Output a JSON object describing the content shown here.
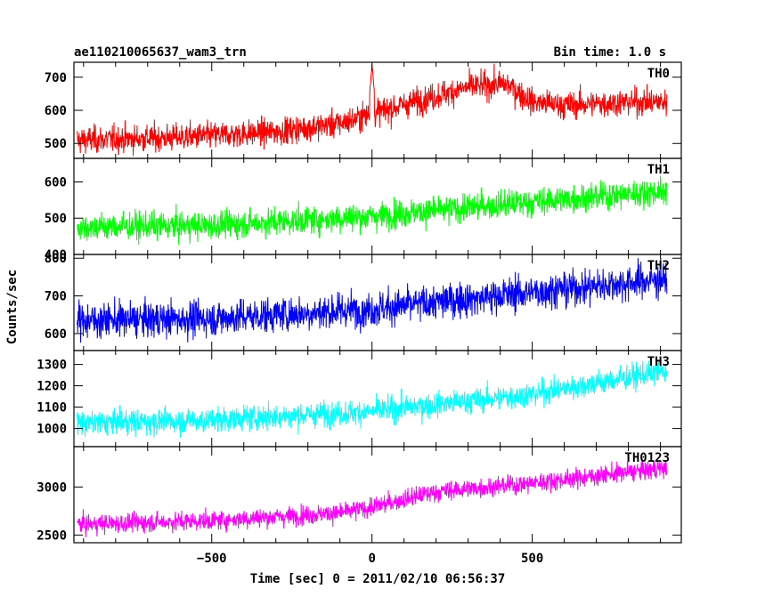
{
  "chart_data": {
    "type": "line",
    "title_left": "ae110210065637_wam3_trn",
    "title_right": "Bin time: 1.0 s",
    "xlabel": "Time [sec] 0 = 2011/02/10 06:56:37",
    "ylabel": "Counts/sec",
    "xlim": [
      -930,
      965
    ],
    "x_ticks": [
      -500,
      0,
      500
    ],
    "x_range": [
      -920,
      920
    ],
    "panels": [
      {
        "name": "TH0",
        "color": "#ff0000",
        "ylim": [
          455,
          745
        ],
        "y_ticks": [
          500,
          600,
          700
        ],
        "trend_x": [
          -920,
          -600,
          -300,
          -100,
          0,
          150,
          300,
          420,
          500,
          600,
          800,
          920
        ],
        "trend_y": [
          510,
          518,
          535,
          560,
          590,
          630,
          670,
          680,
          625,
          615,
          625,
          625
        ],
        "noise": 35,
        "spikes": [
          {
            "x": 0,
            "y": 740
          }
        ]
      },
      {
        "name": "TH1",
        "color": "#00ff00",
        "ylim": [
          400,
          665
        ],
        "y_ticks": [
          400,
          500,
          600
        ],
        "trend_x": [
          -920,
          -500,
          0,
          500,
          920
        ],
        "trend_y": [
          475,
          480,
          505,
          545,
          575
        ],
        "noise": 33,
        "spikes": []
      },
      {
        "name": "TH2",
        "color": "#0000ff",
        "ylim": [
          555,
          810
        ],
        "y_ticks": [
          600,
          700,
          800
        ],
        "trend_x": [
          -920,
          -500,
          0,
          500,
          920
        ],
        "trend_y": [
          635,
          640,
          665,
          710,
          745
        ],
        "noise": 40,
        "spikes": []
      },
      {
        "name": "TH3",
        "color": "#00ffff",
        "ylim": [
          915,
          1365
        ],
        "y_ticks": [
          1000,
          1100,
          1200,
          1300
        ],
        "trend_x": [
          -920,
          -500,
          0,
          500,
          920
        ],
        "trend_y": [
          1025,
          1040,
          1080,
          1160,
          1270
        ],
        "noise": 50,
        "spikes": []
      },
      {
        "name": "TH0123",
        "color": "#ff00ff",
        "ylim": [
          2420,
          3420
        ],
        "y_ticks": [
          2500,
          3000
        ],
        "trend_x": [
          -920,
          -500,
          -100,
          0,
          200,
          500,
          920
        ],
        "trend_y": [
          2610,
          2650,
          2730,
          2790,
          2950,
          3040,
          3200
        ],
        "noise": 85,
        "spikes": []
      }
    ],
    "grid": false,
    "legend": "panel labels top-right"
  }
}
